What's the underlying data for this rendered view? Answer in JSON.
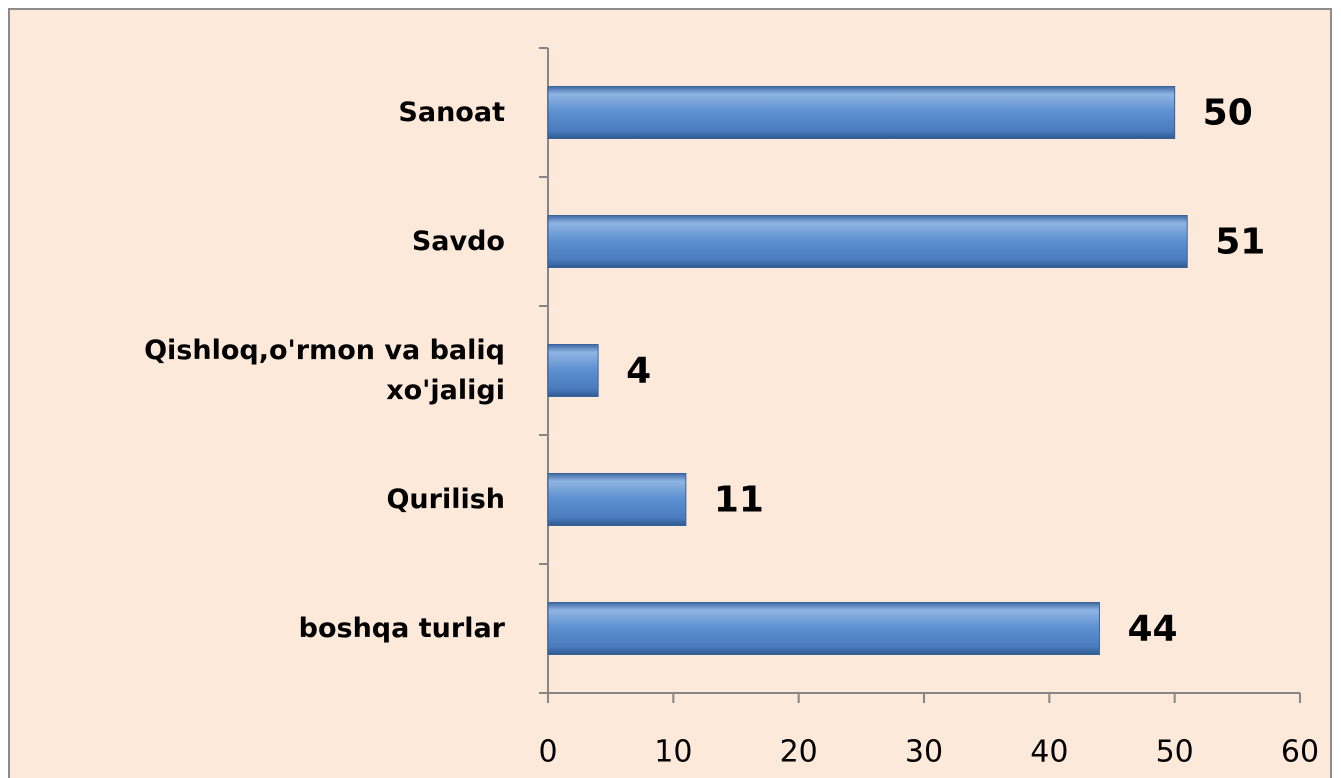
{
  "chart_data": {
    "type": "bar",
    "orientation": "horizontal",
    "categories": [
      "Sanoat",
      "Savdo",
      "Qishloq,o'rmon va baliq\nxo'jaligi",
      "Qurilish",
      "boshqa turlar"
    ],
    "values": [
      50,
      51,
      4,
      11,
      44
    ],
    "color": "#4f81bd",
    "xlim": [
      0,
      60
    ],
    "xticks": [
      0,
      10,
      20,
      30,
      40,
      50,
      60
    ],
    "grid": false
  }
}
